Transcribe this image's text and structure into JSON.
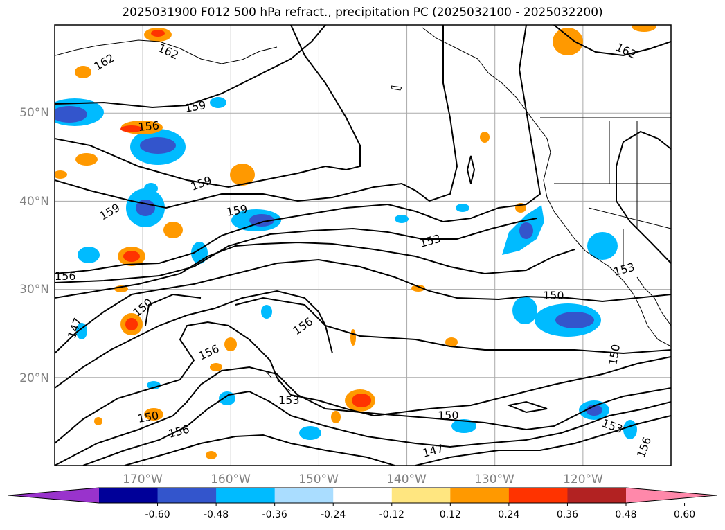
{
  "title": "2025031900 F012 500 hPa refract., precipitation PC (2025032100 - 2025032200)",
  "map": {
    "lon_range": [
      -180,
      -110
    ],
    "lat_range": [
      10,
      60
    ],
    "lat_ticks": [
      {
        "value": 20,
        "label": "20°N"
      },
      {
        "value": 30,
        "label": "30°N"
      },
      {
        "value": 40,
        "label": "40°N"
      },
      {
        "value": 50,
        "label": "50°N"
      }
    ],
    "lon_ticks": [
      {
        "value": -170,
        "label": "170°W"
      },
      {
        "value": -160,
        "label": "160°W"
      },
      {
        "value": -150,
        "label": "150°W"
      },
      {
        "value": -140,
        "label": "140°W"
      },
      {
        "value": -130,
        "label": "130°W"
      },
      {
        "value": -120,
        "label": "120°W"
      }
    ],
    "grid": true,
    "contour_labels": [
      "162",
      "162",
      "162",
      "159",
      "159",
      "159",
      "159",
      "156",
      "156",
      "156",
      "156",
      "156",
      "153",
      "153",
      "153",
      "153",
      "150",
      "150",
      "150",
      "150",
      "150",
      "147",
      "147",
      "156"
    ]
  },
  "colorbar": {
    "ticks": [
      "-0.60",
      "-0.48",
      "-0.36",
      "-0.24",
      "-0.12",
      "0.12",
      "0.24",
      "0.36",
      "0.48",
      "0.60"
    ],
    "colors": [
      "#9933cc",
      "#000099",
      "#3355cc",
      "#00bbff",
      "#aaddff",
      "#ffffff",
      "#ffe680",
      "#ff9900",
      "#ff3300",
      "#b22222",
      "#ff88aa"
    ]
  }
}
